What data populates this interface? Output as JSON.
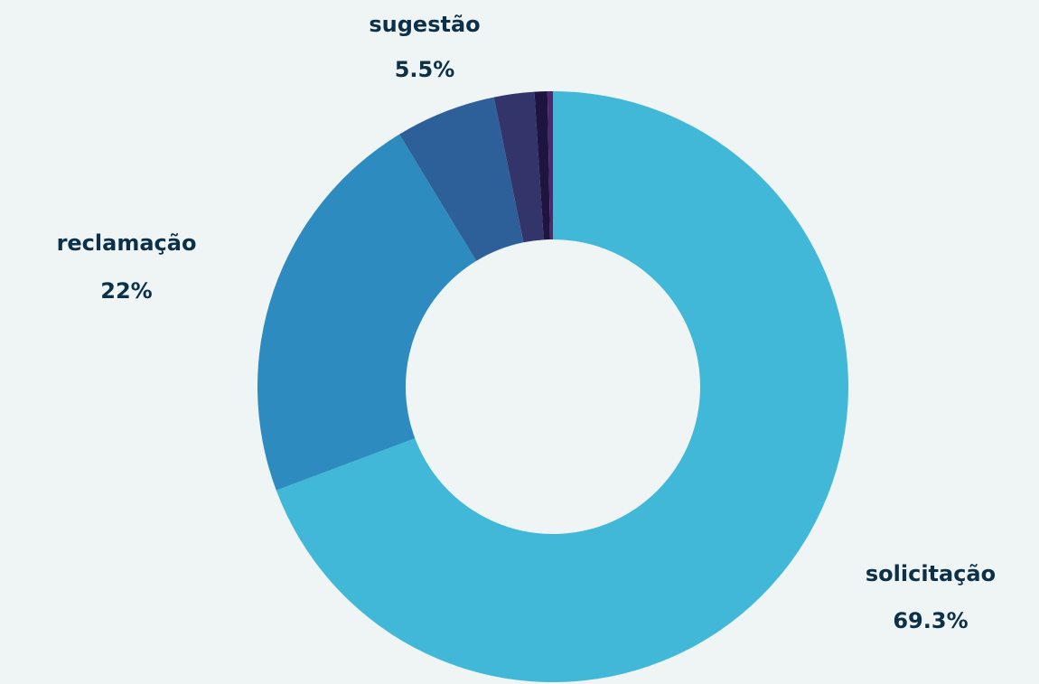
{
  "chart_data": {
    "type": "donut",
    "categories": [
      "solicitação",
      "reclamação",
      "sugestão",
      null,
      null,
      null
    ],
    "values": [
      69.3,
      22,
      5.5,
      2.2,
      0.7,
      0.3
    ],
    "value_labels": [
      "69.3%",
      "22%",
      "5.5%",
      null,
      null,
      null
    ],
    "colors": [
      "#42b8d8",
      "#2e8bbf",
      "#2d6099",
      "#33346a",
      "#1e1440",
      "#4a2a6a"
    ]
  }
}
